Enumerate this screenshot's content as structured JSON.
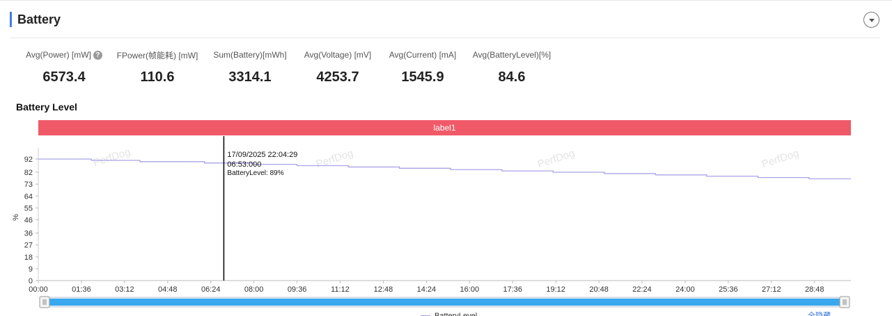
{
  "section": {
    "title": "Battery"
  },
  "stats": [
    {
      "label": "Avg(Power) [mW]",
      "value": "6573.4",
      "help": true
    },
    {
      "label": "FPower(帧能耗) [mW]",
      "value": "110.6"
    },
    {
      "label": "Sum(Battery)[mWh]",
      "value": "3314.1"
    },
    {
      "label": "Avg(Voltage) [mV]",
      "value": "4253.7"
    },
    {
      "label": "Avg(Current) [mA]",
      "value": "1545.9"
    },
    {
      "label": "Avg(BatteryLevel)[%]",
      "value": "84.6"
    }
  ],
  "help_icon_text": "?",
  "chart_title": "Battery Level",
  "watermark": "PerfDog",
  "legend_link": "全隐藏",
  "tooltip": {
    "datetime": "17/09/2025 22:04:29",
    "time": "06:53:000",
    "series_value": "BatteryLevel: 89%"
  },
  "colors": {
    "accent": "#3f7fe0",
    "label_band": "#f05a68",
    "series": "#a8a3e6",
    "slider": "#3aa8ef"
  },
  "chart_data": {
    "type": "line",
    "title": "Battery Level",
    "ylabel": "%",
    "xlabel": "",
    "ylim": [
      0,
      100
    ],
    "yticks": [
      0,
      9,
      18,
      27,
      36,
      46,
      55,
      64,
      73,
      82,
      92
    ],
    "xlim_seconds": [
      0,
      1809
    ],
    "xticks": [
      "00:00",
      "01:36",
      "03:12",
      "04:48",
      "06:24",
      "08:00",
      "09:36",
      "11:12",
      "12:48",
      "14:24",
      "16:00",
      "17:36",
      "19:12",
      "20:48",
      "22:24",
      "24:00",
      "25:36",
      "27:12",
      "28:48"
    ],
    "label_band": {
      "text": "label1",
      "start": "00:00",
      "end": "30:09"
    },
    "cursor": {
      "time": "06:53",
      "value": 89
    },
    "legend": "BatteryLevel",
    "series": [
      {
        "name": "BatteryLevel",
        "steps": [
          {
            "start": "00:00",
            "value": 92
          },
          {
            "start": "01:58",
            "value": 91
          },
          {
            "start": "03:46",
            "value": 90
          },
          {
            "start": "06:10",
            "value": 89
          },
          {
            "start": "08:00",
            "value": 88
          },
          {
            "start": "09:36",
            "value": 87
          },
          {
            "start": "11:30",
            "value": 86
          },
          {
            "start": "13:24",
            "value": 85
          },
          {
            "start": "15:18",
            "value": 84
          },
          {
            "start": "17:12",
            "value": 83
          },
          {
            "start": "19:06",
            "value": 82
          },
          {
            "start": "21:00",
            "value": 81
          },
          {
            "start": "22:54",
            "value": 80
          },
          {
            "start": "24:48",
            "value": 79
          },
          {
            "start": "26:42",
            "value": 78
          },
          {
            "start": "28:36",
            "value": 77
          }
        ],
        "end": "30:09"
      }
    ],
    "grid": false,
    "legend_position": "bottom"
  }
}
